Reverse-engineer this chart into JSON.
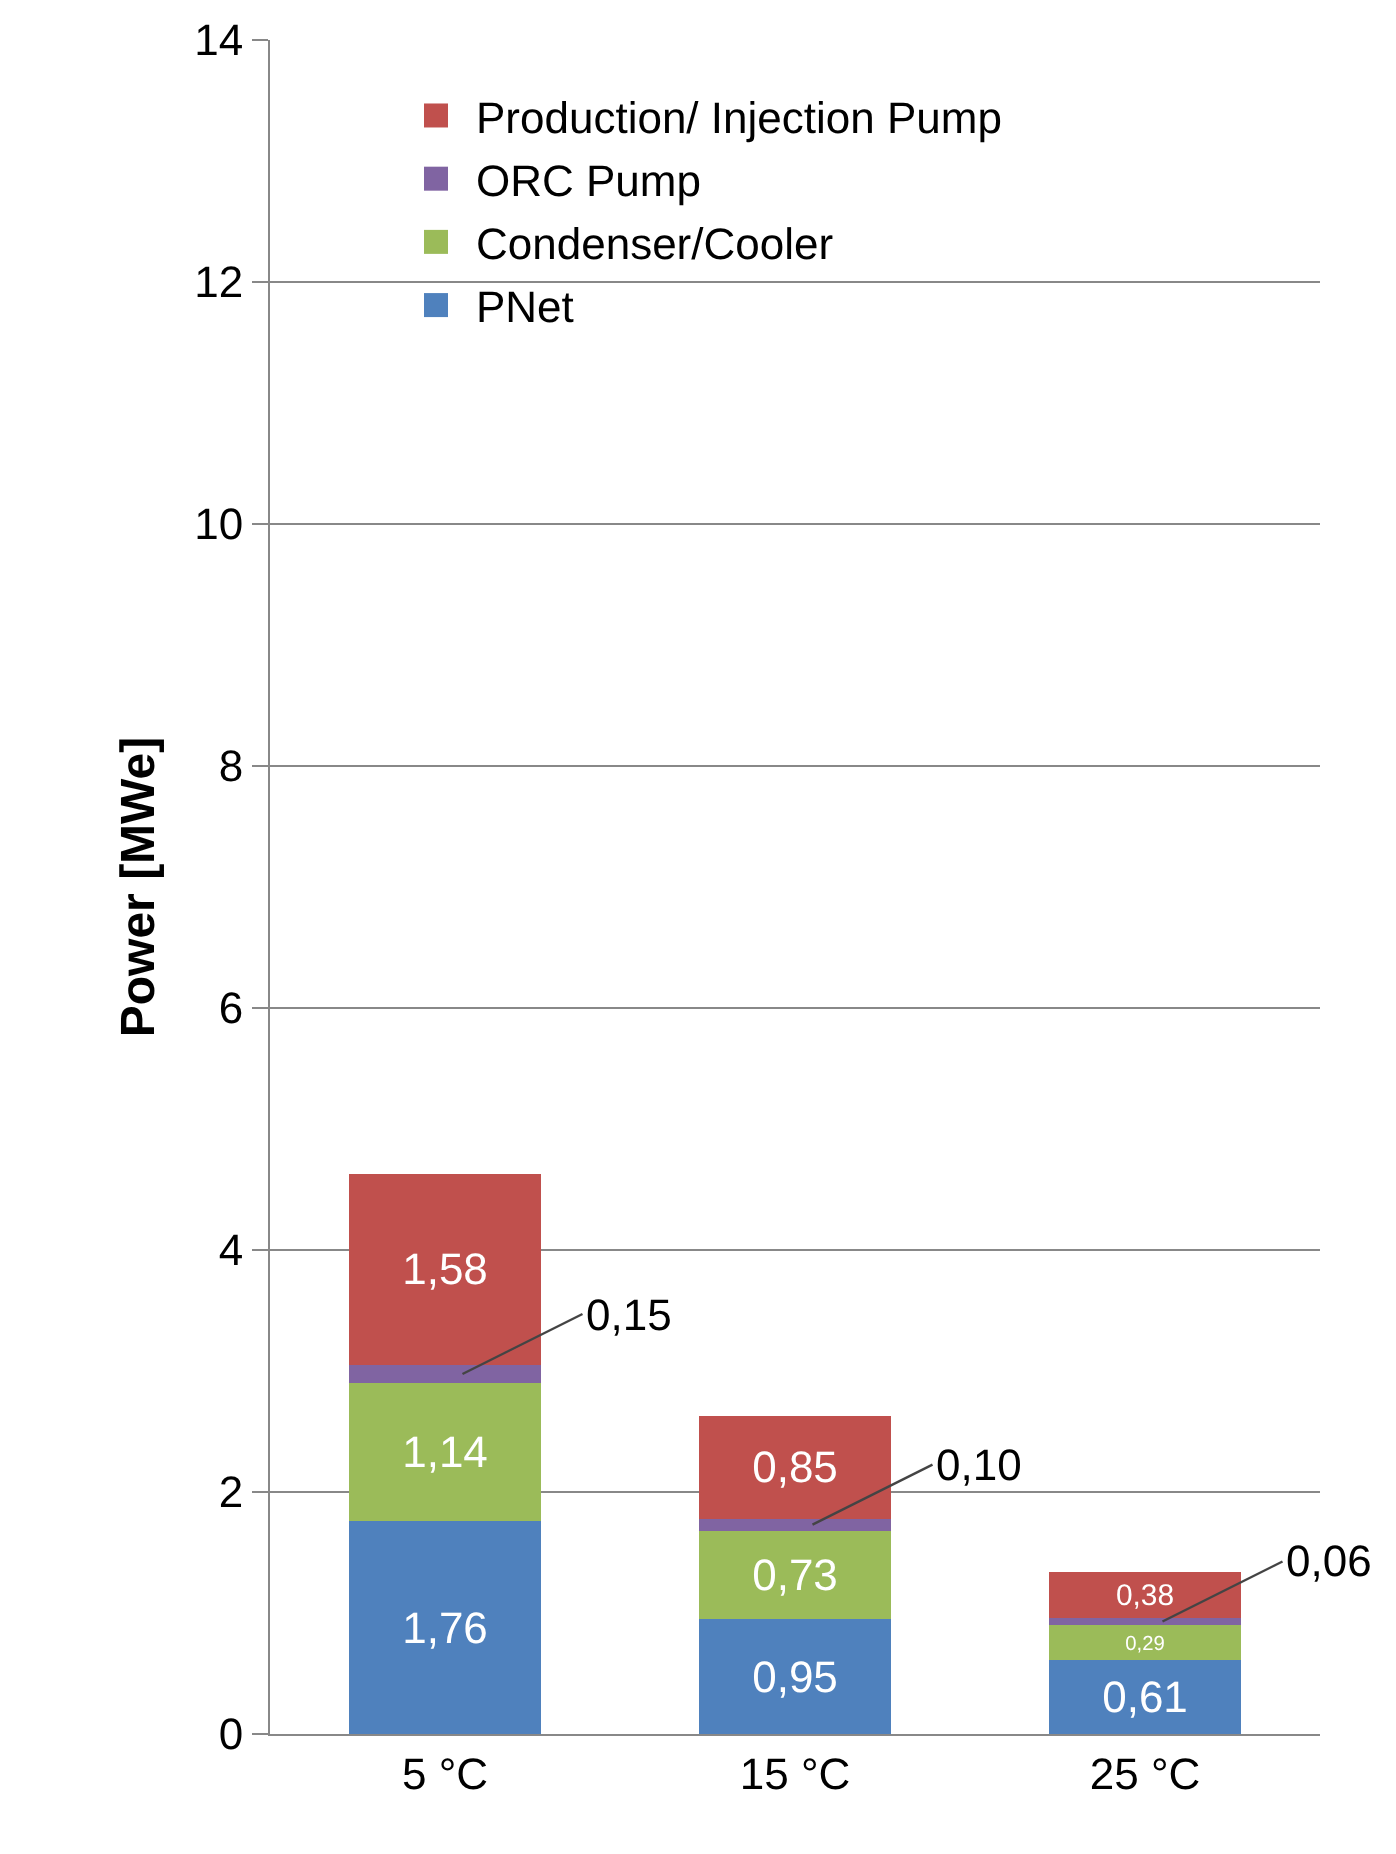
{
  "chart_data": {
    "type": "bar",
    "stacked": true,
    "ylabel": "Power [MWe]",
    "categories": [
      "5 °C",
      "15 °C",
      "25 °C"
    ],
    "series": [
      {
        "name": "PNet",
        "color": "#4f81bd",
        "values": [
          1.76,
          0.95,
          0.61
        ],
        "value_labels": [
          "1,76",
          "0,95",
          "0,61"
        ]
      },
      {
        "name": "Condenser/Cooler",
        "color": "#9bbb59",
        "values": [
          1.14,
          0.73,
          0.29
        ],
        "value_labels": [
          "1,14",
          "0,73",
          "0,29"
        ]
      },
      {
        "name": "ORC Pump",
        "color": "#8064a2",
        "values": [
          0.15,
          0.1,
          0.06
        ],
        "value_labels": [
          "0,15",
          "0,10",
          "0,06"
        ]
      },
      {
        "name": "Production/ Injection Pump",
        "color": "#c0504d",
        "values": [
          1.58,
          0.85,
          0.38
        ],
        "value_labels": [
          "1,58",
          "0,85",
          "0,38"
        ]
      }
    ],
    "ylim": [
      0,
      14
    ],
    "yticks": [
      0,
      2,
      4,
      6,
      8,
      10,
      12,
      14
    ],
    "grid": "y",
    "legend": "top"
  }
}
